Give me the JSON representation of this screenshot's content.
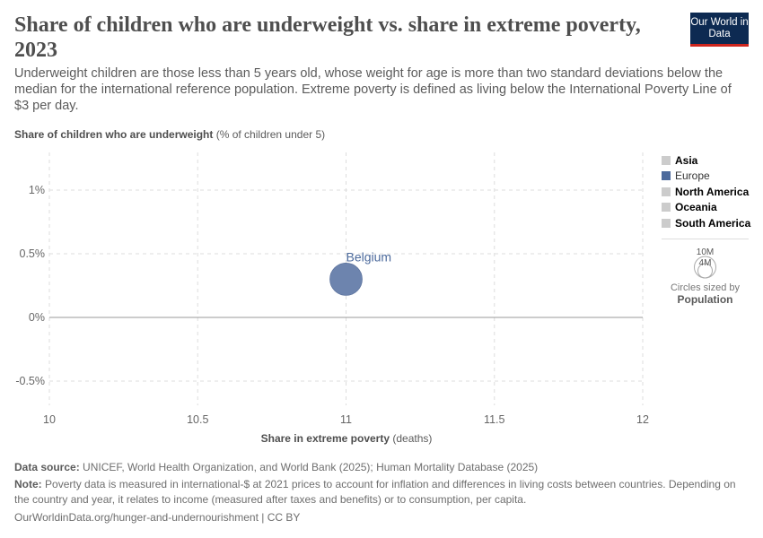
{
  "header": {
    "title": "Share of children who are underweight vs. share in extreme poverty, 2023",
    "subtitle": "Underweight children are those less than 5 years old, whose weight for age is more than two standard deviations below the median for the international reference population. Extreme poverty is defined as living below the International Poverty Line of $3 per day.",
    "logo": "Our World in Data"
  },
  "chart_data": {
    "type": "scatter",
    "ylabel_bold": "Share of children who are underweight",
    "ylabel_unit": "(% of children under 5)",
    "xlabel_bold": "Share in extreme poverty",
    "xlabel_unit": "(deaths)",
    "xlim": [
      10,
      12
    ],
    "ylim": [
      -0.7,
      1.3
    ],
    "x_ticks": [
      "10",
      "10.5",
      "11",
      "11.5",
      "12"
    ],
    "x_tick_values": [
      10,
      10.5,
      11,
      11.5,
      12
    ],
    "y_ticks": [
      "1%",
      "0.5%",
      "0%",
      "-0.5%"
    ],
    "y_tick_values": [
      1,
      0.5,
      0,
      -0.5
    ],
    "grid": true,
    "points": [
      {
        "label": "Belgium",
        "x": 11,
        "y": 0.3,
        "region": "Europe",
        "color": "#6d84ae",
        "label_color": "#4c6a9c"
      }
    ]
  },
  "legend": {
    "items": [
      {
        "label": "Asia",
        "color": "#cccccc",
        "active": false
      },
      {
        "label": "Europe",
        "color": "#4c6a9c",
        "active": true
      },
      {
        "label": "North America",
        "color": "#cccccc",
        "active": false
      },
      {
        "label": "Oceania",
        "color": "#cccccc",
        "active": false
      },
      {
        "label": "South America",
        "color": "#cccccc",
        "active": false
      }
    ],
    "size_large": "10M",
    "size_small": "4M",
    "size_caption": "Circles sized by",
    "size_variable": "Population"
  },
  "footer": {
    "source_label": "Data source:",
    "source": "UNICEF, World Health Organization, and World Bank (2025); Human Mortality Database (2025)",
    "note_label": "Note:",
    "note": "Poverty data is measured in international-$ at 2021 prices to account for inflation and differences in living costs between countries. Depending on the country and year, it relates to income (measured after taxes and benefits) or to consumption, per capita.",
    "url": "OurWorldinData.org/hunger-and-undernourishment | CC BY"
  }
}
